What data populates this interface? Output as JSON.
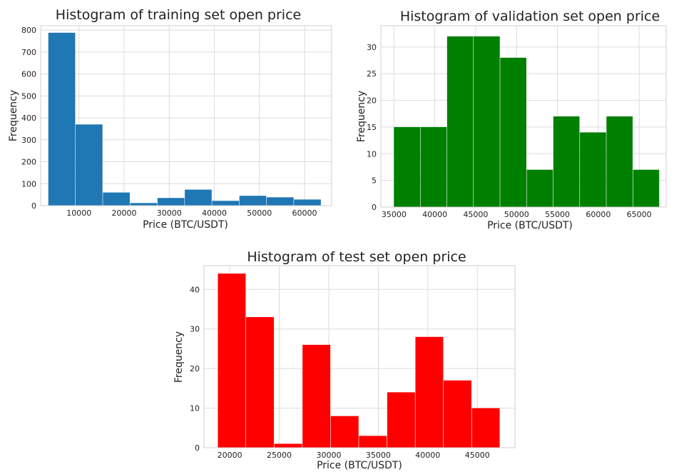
{
  "chart_data": [
    {
      "type": "bar",
      "title": "Histogram of training set open price",
      "xlabel": "Price (BTC/USDT)",
      "ylabel": "Frequency",
      "color": "#1f77b4",
      "bin_edges": [
        3200,
        9250,
        15300,
        21350,
        27400,
        33450,
        39500,
        45550,
        51600,
        57650,
        63700
      ],
      "values": [
        788,
        370,
        60,
        12,
        35,
        73,
        22,
        45,
        38,
        28
      ],
      "xlim": [
        1500,
        66000
      ],
      "ylim": [
        0,
        820
      ],
      "xticks": [
        10000,
        20000,
        30000,
        40000,
        50000,
        60000
      ],
      "xtick_labels": [
        "10000",
        "20000",
        "30000",
        "40000",
        "50000",
        "60000"
      ],
      "yticks": [
        0,
        100,
        200,
        300,
        400,
        500,
        600,
        700,
        800
      ],
      "ytick_labels": [
        "0",
        "100",
        "200",
        "300",
        "400",
        "500",
        "600",
        "700",
        "800"
      ],
      "grid": true
    },
    {
      "type": "bar",
      "title": "Histogram of validation set open price",
      "xlabel": "Price (BTC/USDT)",
      "ylabel": "Frequency",
      "color": "#008000",
      "bin_edges": [
        35000,
        38250,
        41500,
        44750,
        48000,
        51250,
        54500,
        57750,
        61000,
        64250,
        67500
      ],
      "values": [
        15,
        15,
        32,
        32,
        28,
        7,
        17,
        14,
        17,
        7
      ],
      "xlim": [
        33400,
        68300
      ],
      "ylim": [
        0,
        34
      ],
      "xticks": [
        35000,
        40000,
        45000,
        50000,
        55000,
        60000,
        65000
      ],
      "xtick_labels": [
        "35000",
        "40000",
        "45000",
        "50000",
        "55000",
        "60000",
        "65000"
      ],
      "yticks": [
        0,
        5,
        10,
        15,
        20,
        25,
        30
      ],
      "ytick_labels": [
        "0",
        "5",
        "10",
        "15",
        "20",
        "25",
        "30"
      ],
      "grid": true
    },
    {
      "type": "bar",
      "title": "Histogram of test set open price",
      "xlabel": "Price (BTC/USDT)",
      "ylabel": "Frequency",
      "color": "#ff0000",
      "bin_edges": [
        18800,
        21650,
        24500,
        27350,
        30200,
        33050,
        35900,
        38750,
        41600,
        44450,
        47300
      ],
      "values": [
        44,
        33,
        1,
        26,
        8,
        3,
        14,
        28,
        17,
        10
      ],
      "xlim": [
        17400,
        48800
      ],
      "ylim": [
        0,
        46
      ],
      "xticks": [
        20000,
        25000,
        30000,
        35000,
        40000,
        45000
      ],
      "xtick_labels": [
        "20000",
        "25000",
        "30000",
        "35000",
        "40000",
        "45000"
      ],
      "yticks": [
        0,
        10,
        20,
        30,
        40
      ],
      "ytick_labels": [
        "0",
        "10",
        "20",
        "30",
        "40"
      ],
      "grid": true
    }
  ]
}
